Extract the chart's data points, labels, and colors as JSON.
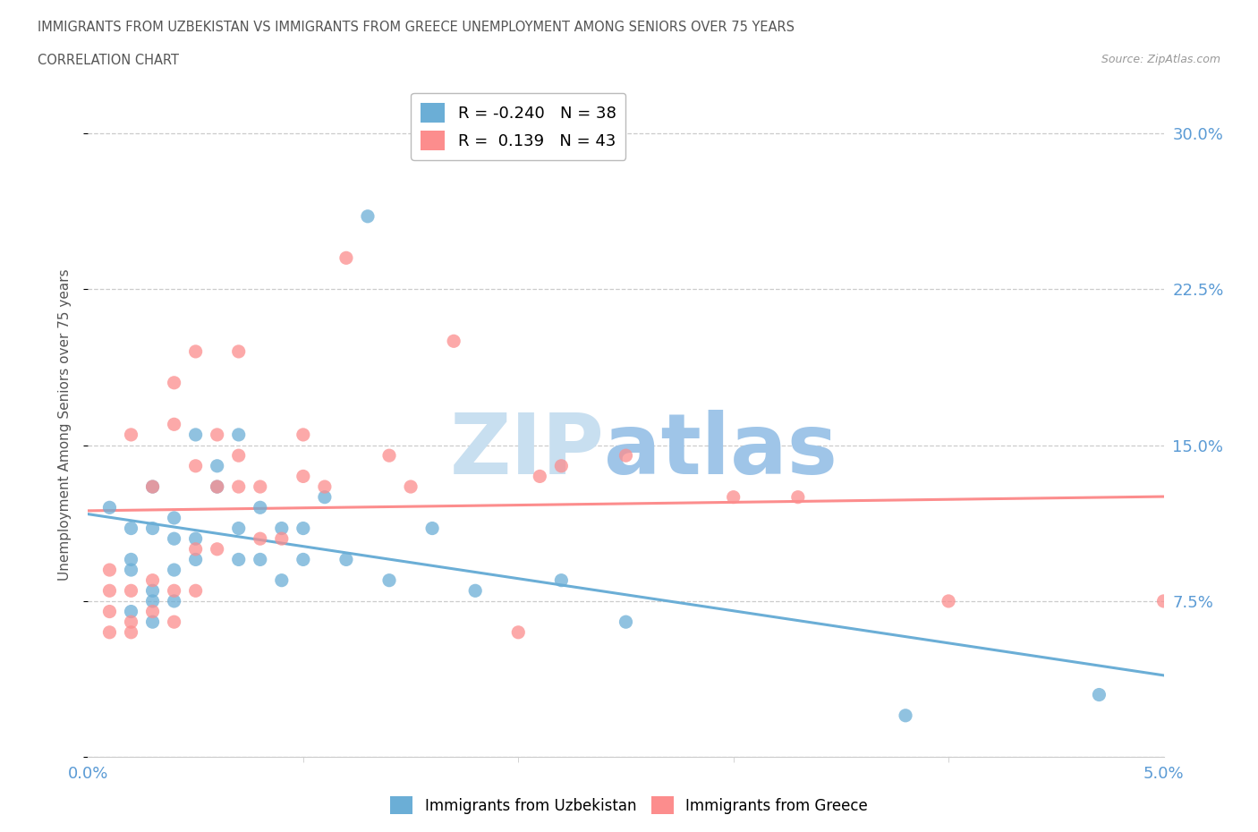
{
  "title_line1": "IMMIGRANTS FROM UZBEKISTAN VS IMMIGRANTS FROM GREECE UNEMPLOYMENT AMONG SENIORS OVER 75 YEARS",
  "title_line2": "CORRELATION CHART",
  "source_text": "Source: ZipAtlas.com",
  "ylabel": "Unemployment Among Seniors over 75 years",
  "xlim": [
    0.0,
    0.05
  ],
  "ylim": [
    0.0,
    0.32
  ],
  "yticks": [
    0.0,
    0.075,
    0.15,
    0.225,
    0.3
  ],
  "ytick_labels": [
    "",
    "7.5%",
    "15.0%",
    "22.5%",
    "30.0%"
  ],
  "xticks": [
    0.0,
    0.05
  ],
  "xtick_labels": [
    "0.0%",
    "5.0%"
  ],
  "r_uzbekistan": -0.24,
  "n_uzbekistan": 38,
  "r_greece": 0.139,
  "n_greece": 43,
  "color_uzbekistan": "#6baed6",
  "color_greece": "#fc8d8d",
  "scatter_uzbekistan_x": [
    0.001,
    0.002,
    0.002,
    0.002,
    0.002,
    0.003,
    0.003,
    0.003,
    0.003,
    0.003,
    0.004,
    0.004,
    0.004,
    0.004,
    0.005,
    0.005,
    0.005,
    0.006,
    0.006,
    0.007,
    0.007,
    0.007,
    0.008,
    0.008,
    0.009,
    0.009,
    0.01,
    0.01,
    0.011,
    0.012,
    0.013,
    0.014,
    0.016,
    0.018,
    0.022,
    0.025,
    0.038,
    0.047
  ],
  "scatter_uzbekistan_y": [
    0.12,
    0.07,
    0.09,
    0.095,
    0.11,
    0.065,
    0.075,
    0.08,
    0.11,
    0.13,
    0.075,
    0.09,
    0.105,
    0.115,
    0.095,
    0.105,
    0.155,
    0.13,
    0.14,
    0.095,
    0.11,
    0.155,
    0.095,
    0.12,
    0.085,
    0.11,
    0.095,
    0.11,
    0.125,
    0.095,
    0.26,
    0.085,
    0.11,
    0.08,
    0.085,
    0.065,
    0.02,
    0.03
  ],
  "scatter_greece_x": [
    0.001,
    0.001,
    0.001,
    0.001,
    0.002,
    0.002,
    0.002,
    0.002,
    0.003,
    0.003,
    0.003,
    0.004,
    0.004,
    0.004,
    0.004,
    0.005,
    0.005,
    0.005,
    0.005,
    0.006,
    0.006,
    0.006,
    0.007,
    0.007,
    0.007,
    0.008,
    0.008,
    0.009,
    0.01,
    0.01,
    0.011,
    0.012,
    0.014,
    0.015,
    0.017,
    0.02,
    0.021,
    0.022,
    0.025,
    0.03,
    0.033,
    0.04,
    0.05
  ],
  "scatter_greece_y": [
    0.06,
    0.07,
    0.08,
    0.09,
    0.06,
    0.065,
    0.08,
    0.155,
    0.07,
    0.085,
    0.13,
    0.065,
    0.08,
    0.16,
    0.18,
    0.08,
    0.1,
    0.14,
    0.195,
    0.1,
    0.13,
    0.155,
    0.13,
    0.145,
    0.195,
    0.105,
    0.13,
    0.105,
    0.135,
    0.155,
    0.13,
    0.24,
    0.145,
    0.13,
    0.2,
    0.06,
    0.135,
    0.14,
    0.145,
    0.125,
    0.125,
    0.075,
    0.075
  ],
  "watermark_zip": "ZIP",
  "watermark_atlas": "atlas",
  "watermark_color_zip": "#c8dff0",
  "watermark_color_atlas": "#9fc5e8",
  "grid_color": "#cccccc",
  "background_color": "#ffffff",
  "title_color": "#555555",
  "tick_color": "#5b9bd5",
  "source_color": "#999999"
}
